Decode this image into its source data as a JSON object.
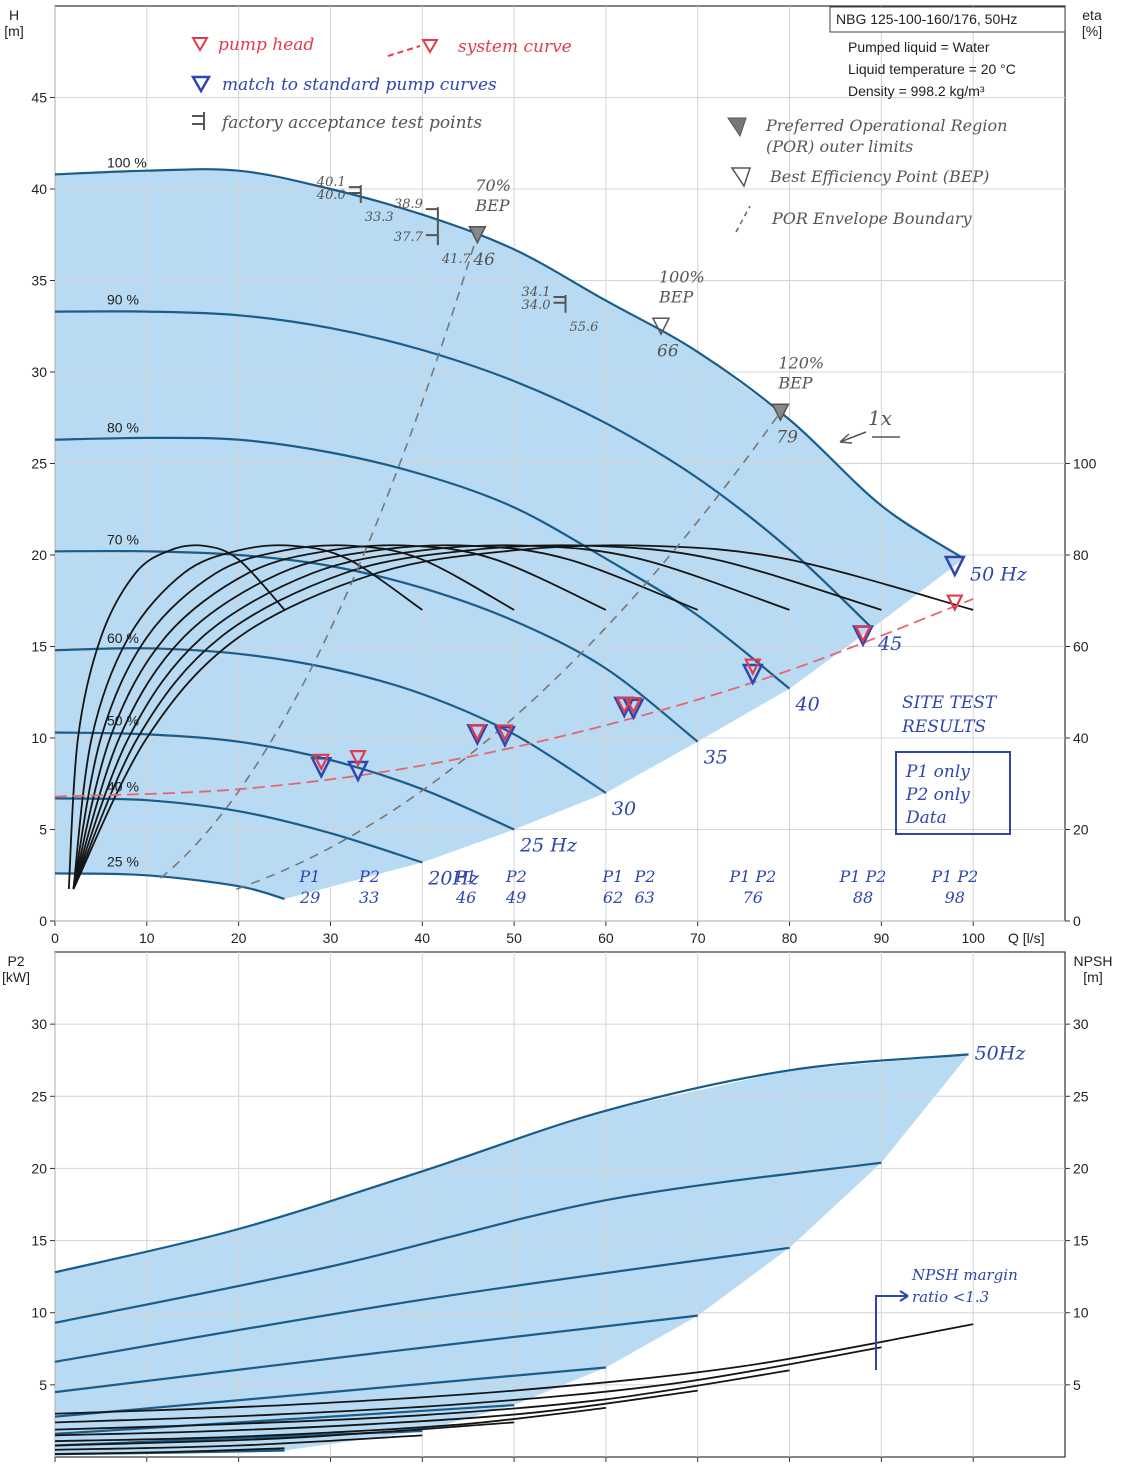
{
  "chart_data": [
    {
      "type": "line",
      "title": "NBG 125-100-160/176, 50Hz",
      "info": [
        "Pumped liquid = Water",
        "Liquid temperature = 20 °C",
        "Density = 998.2 kg/m³"
      ],
      "xlabel": "Q [l/s]",
      "ylabel": "H",
      "yunit": "[m]",
      "y2label": "eta",
      "y2unit": "[%]",
      "xlim": [
        0,
        110
      ],
      "ylim": [
        0,
        50
      ],
      "y2lim": [
        0,
        200
      ],
      "xticks": [
        0,
        10,
        20,
        30,
        40,
        50,
        60,
        70,
        80,
        90,
        100
      ],
      "yticks": [
        0,
        5,
        10,
        15,
        20,
        25,
        30,
        35,
        40,
        45
      ],
      "y2ticks": [
        0,
        20,
        40,
        60,
        80,
        100
      ],
      "grid": true,
      "area_color": "#b8dbf3",
      "series": [
        {
          "name": "100 %",
          "color": "#1a5c8a",
          "x": [
            0,
            10,
            20,
            30,
            40,
            50,
            60,
            70,
            80,
            90,
            99
          ],
          "values": [
            40.8,
            41,
            41,
            40,
            38.6,
            36.7,
            33.9,
            31.1,
            27.4,
            22.7,
            19.8
          ]
        },
        {
          "name": "90 %",
          "color": "#1a5c8a",
          "x": [
            0,
            10,
            20,
            30,
            40,
            50,
            60,
            70,
            80,
            89
          ],
          "values": [
            33.3,
            33.3,
            33.1,
            32.4,
            31.2,
            29.5,
            27.2,
            24.2,
            20.3,
            16
          ]
        },
        {
          "name": "80 %",
          "color": "#1a5c8a",
          "x": [
            0,
            10,
            20,
            30,
            40,
            50,
            60,
            70,
            80
          ],
          "values": [
            26.3,
            26.4,
            26.3,
            25.6,
            24.4,
            22.6,
            19.8,
            16.7,
            12.7
          ]
        },
        {
          "name": "70 %",
          "color": "#1a5c8a",
          "x": [
            0,
            10,
            20,
            30,
            40,
            50,
            60,
            70
          ],
          "values": [
            20.2,
            20.2,
            20,
            19.4,
            18.2,
            16.4,
            13.8,
            9.8
          ]
        },
        {
          "name": "60 %",
          "color": "#1a5c8a",
          "x": [
            0,
            10,
            20,
            30,
            40,
            50,
            60
          ],
          "values": [
            14.8,
            14.9,
            14.6,
            13.8,
            12.4,
            10.2,
            7
          ]
        },
        {
          "name": "50 %",
          "color": "#1a5c8a",
          "x": [
            0,
            10,
            20,
            30,
            40,
            50
          ],
          "values": [
            10.3,
            10.2,
            9.8,
            8.8,
            7.2,
            5
          ]
        },
        {
          "name": "40 %",
          "color": "#1a5c8a",
          "x": [
            0,
            10,
            20,
            30,
            40
          ],
          "values": [
            6.7,
            6.6,
            6,
            4.8,
            3.2
          ]
        },
        {
          "name": "25 %",
          "color": "#1a5c8a",
          "x": [
            0,
            10,
            20,
            25
          ],
          "values": [
            2.6,
            2.5,
            1.9,
            1.2
          ]
        },
        {
          "color": "#151515",
          "axis": "y2",
          "x": [
            2,
            10,
            20,
            35,
            50,
            65,
            80,
            100
          ],
          "values": [
            7,
            40,
            62,
            76,
            81,
            82,
            79,
            68
          ]
        },
        {
          "color": "#151515",
          "axis": "y2",
          "x": [
            2,
            9,
            18,
            31.5,
            45,
            58.5,
            72,
            90
          ],
          "values": [
            7,
            40,
            62,
            76,
            81,
            82,
            79,
            68
          ]
        },
        {
          "color": "#151515",
          "axis": "y2",
          "x": [
            2,
            8,
            16,
            28,
            40,
            52,
            64,
            80
          ],
          "values": [
            7,
            40,
            62,
            76,
            81,
            82,
            79,
            68
          ]
        },
        {
          "color": "#151515",
          "axis": "y2",
          "x": [
            2,
            7,
            14,
            24.5,
            35,
            45.5,
            56,
            70
          ],
          "values": [
            7,
            40,
            62,
            76,
            81,
            82,
            79,
            68
          ]
        },
        {
          "color": "#151515",
          "axis": "y2",
          "x": [
            2,
            6,
            12,
            21,
            30,
            39,
            48,
            60
          ],
          "values": [
            7,
            40,
            62,
            76,
            81,
            82,
            79,
            68
          ]
        },
        {
          "color": "#151515",
          "axis": "y2",
          "x": [
            2,
            5,
            10,
            17.5,
            25,
            32.5,
            40,
            50
          ],
          "values": [
            7,
            40,
            62,
            76,
            81,
            82,
            79,
            68
          ]
        },
        {
          "color": "#151515",
          "axis": "y2",
          "x": [
            2,
            4,
            8,
            14,
            20,
            26,
            32,
            40
          ],
          "values": [
            7,
            40,
            62,
            76,
            81,
            82,
            79,
            68
          ]
        },
        {
          "color": "#151515",
          "axis": "y2",
          "x": [
            1.5,
            2.5,
            5,
            8.75,
            12.5,
            16.25,
            20,
            25
          ],
          "values": [
            7,
            40,
            62,
            76,
            81,
            82,
            79,
            68
          ]
        }
      ],
      "freq_labels": [
        "50 Hz",
        "45",
        "40",
        "35",
        "30",
        "25 Hz",
        "20Hz"
      ],
      "system_curve": {
        "name": "system curve",
        "color": "#e8646e",
        "x": [
          0,
          20,
          40,
          60,
          80,
          100
        ],
        "values": [
          6.8,
          7.2,
          8.5,
          10.7,
          13.7,
          17.6
        ]
      },
      "pump_head": {
        "name": "pump head",
        "color": "#e23c4c",
        "x": [
          29,
          33,
          46,
          49,
          62,
          63,
          76,
          88,
          98
        ],
        "values": [
          8.7,
          8.9,
          10.3,
          10.3,
          11.8,
          11.8,
          13.9,
          15.7,
          17.4
        ]
      },
      "match": {
        "name": "match to standard pump curves",
        "color": "#2f45b0",
        "x": [
          29,
          33,
          46,
          49,
          62,
          63,
          76,
          88,
          98
        ],
        "values": [
          8.4,
          8.2,
          10.2,
          10.1,
          11.7,
          11.6,
          13.5,
          15.6,
          19.4
        ]
      },
      "site_tests": {
        "names": [
          "P1",
          "P2",
          "P1",
          "P2",
          "P1",
          "P2",
          "P1 P2",
          "P1 P2",
          "P1 P2"
        ]
      },
      "factory_tests": {
        "name": "factory acceptance test points",
        "x": [
          33.3,
          41.7,
          55.6
        ],
        "values": [
          40.1,
          38.9,
          34.1
        ],
        "values_2": [
          40,
          37.7,
          34
        ],
        "labels_2": [
          "40.0",
          "37.7",
          "34.0"
        ]
      },
      "bep": {
        "name": "Best Efficiency Point (BEP)",
        "labels": [
          [
            "70%",
            "BEP"
          ],
          [
            "100%",
            "BEP"
          ],
          [
            "120%",
            "BEP"
          ]
        ],
        "x": [
          46,
          66,
          79
        ],
        "values": [
          37.5,
          32.5,
          27.8
        ]
      },
      "por": {
        "name": [
          "Preferred Operational Region",
          "(POR) outer limits"
        ]
      },
      "por_boundary": {
        "name": "POR Envelope Boundary"
      },
      "notes": {
        "one_x": "1x",
        "site_test": [
          "SITE TEST",
          "RESULTS"
        ],
        "site_box": [
          "P1 only",
          "P2 only",
          "Data"
        ]
      }
    },
    {
      "type": "line",
      "ylabel": "P2",
      "yunit": "[kW]",
      "y2label": "NPSH",
      "y2unit": "[m]",
      "xlim": [
        0,
        110
      ],
      "ylim": [
        0,
        35
      ],
      "y2lim": [
        0,
        35
      ],
      "xticks": [
        0,
        10,
        20,
        30,
        40,
        50,
        60,
        70,
        80,
        90,
        100
      ],
      "xtick_labels": false,
      "yticks": [
        5,
        10,
        15,
        20,
        25,
        30
      ],
      "y2ticks": [
        5,
        10,
        15,
        20,
        25,
        30
      ],
      "grid": true,
      "area_color": "#b8dbf3",
      "series": [
        {
          "color": "#1a5c8a",
          "x": [
            0,
            20,
            40,
            60,
            80,
            99.5
          ],
          "values": [
            12.8,
            15.8,
            19.8,
            24,
            26.8,
            27.9
          ]
        },
        {
          "color": "#1a5c8a",
          "x": [
            0,
            30,
            60,
            90
          ],
          "values": [
            9.3,
            13.2,
            17.8,
            20.4
          ]
        },
        {
          "color": "#1a5c8a",
          "x": [
            0,
            40,
            80
          ],
          "values": [
            6.6,
            10.9,
            14.5
          ]
        },
        {
          "color": "#1a5c8a",
          "x": [
            0,
            35,
            70
          ],
          "values": [
            4.5,
            7.2,
            9.8
          ]
        },
        {
          "color": "#1a5c8a",
          "x": [
            0,
            30,
            60
          ],
          "values": [
            2.8,
            4.5,
            6.2
          ]
        },
        {
          "color": "#1a5c8a",
          "x": [
            0,
            25,
            50
          ],
          "values": [
            1.6,
            2.6,
            3.6
          ]
        },
        {
          "color": "#1a5c8a",
          "x": [
            0,
            20,
            40
          ],
          "values": [
            0.8,
            1.3,
            1.8
          ]
        },
        {
          "color": "#1a5c8a",
          "x": [
            0,
            12.5,
            25
          ],
          "values": [
            0.2,
            0.3,
            0.45
          ]
        },
        {
          "color": "#151515",
          "axis": "y2",
          "x": [
            0,
            25,
            50,
            75,
            100
          ],
          "values": [
            3,
            3.6,
            4.6,
            6.3,
            9.2
          ]
        },
        {
          "color": "#151515",
          "axis": "y2",
          "x": [
            0,
            22.5,
            45,
            67.5,
            90
          ],
          "values": [
            2.4,
            2.9,
            3.7,
            5.1,
            7.6
          ]
        },
        {
          "color": "#151515",
          "axis": "y2",
          "x": [
            0,
            20,
            40,
            60,
            80
          ],
          "values": [
            1.9,
            2.3,
            2.9,
            4,
            6
          ]
        },
        {
          "color": "#151515",
          "axis": "y2",
          "x": [
            0,
            17.5,
            35,
            52.5,
            70
          ],
          "values": [
            1.5,
            1.8,
            2.3,
            3.1,
            4.6
          ]
        },
        {
          "color": "#151515",
          "axis": "y2",
          "x": [
            0,
            15,
            30,
            45,
            60
          ],
          "values": [
            1.1,
            1.3,
            1.7,
            2.3,
            3.4
          ]
        },
        {
          "color": "#151515",
          "axis": "y2",
          "x": [
            0,
            25,
            50
          ],
          "values": [
            0.8,
            1.3,
            2.4
          ]
        },
        {
          "color": "#151515",
          "axis": "y2",
          "x": [
            0,
            20,
            40
          ],
          "values": [
            0.5,
            0.8,
            1.5
          ]
        },
        {
          "color": "#151515",
          "axis": "y2",
          "x": [
            0,
            12.5,
            25
          ],
          "values": [
            0.2,
            0.35,
            0.6
          ]
        }
      ],
      "freq_labels": [
        "50Hz"
      ],
      "notes": {
        "npsh_margin": [
          "NPSH margin",
          "ratio <1.3"
        ]
      }
    }
  ]
}
